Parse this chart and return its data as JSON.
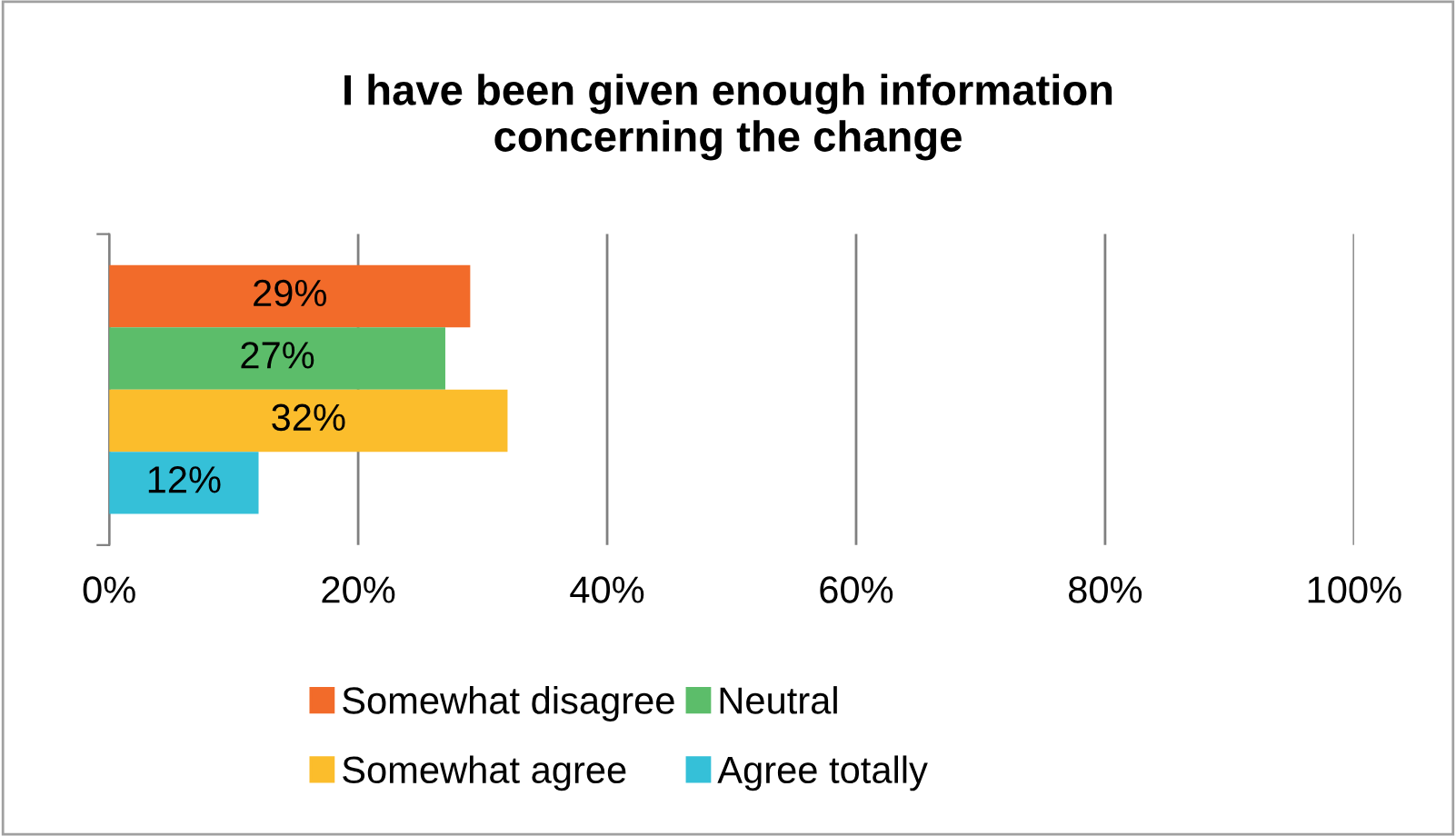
{
  "chart_data": {
    "type": "bar",
    "orientation": "horizontal",
    "title": "I have been given enough information\nconcerning the change",
    "categories": [
      null
    ],
    "series": [
      {
        "name": "Somewhat disagree",
        "color": "#f26b2a",
        "values": [
          29
        ],
        "value_labels": [
          "29%"
        ]
      },
      {
        "name": "Neutral",
        "color": "#5cbd6a",
        "values": [
          27
        ],
        "value_labels": [
          "27%"
        ]
      },
      {
        "name": "Somewhat agree",
        "color": "#fbbd2c",
        "values": [
          32
        ],
        "value_labels": [
          "32%"
        ]
      },
      {
        "name": "Agree totally",
        "color": "#35c0d8",
        "values": [
          12
        ],
        "value_labels": [
          "12%"
        ]
      }
    ],
    "xlim": [
      0,
      100
    ],
    "xticks": [
      {
        "value": 0,
        "label": "0%"
      },
      {
        "value": 20,
        "label": "20%"
      },
      {
        "value": 40,
        "label": "40%"
      },
      {
        "value": 60,
        "label": "60%"
      },
      {
        "value": 80,
        "label": "80%"
      },
      {
        "value": 100,
        "label": "100%"
      }
    ],
    "grid": "x",
    "legend": "bottom"
  }
}
